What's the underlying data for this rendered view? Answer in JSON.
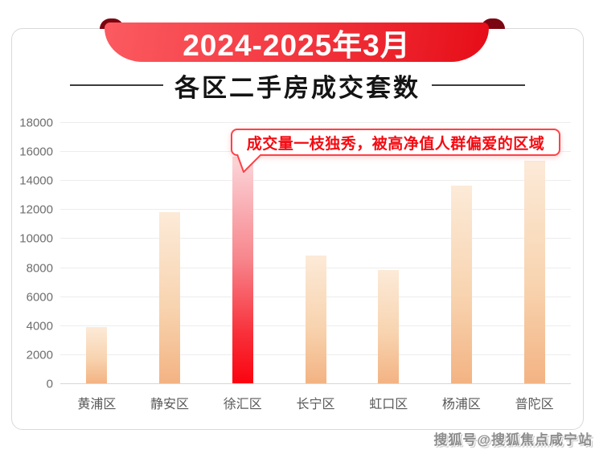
{
  "banner": {
    "period": "2024-2025年3月"
  },
  "section_title": {
    "text": "各区二手房成交套数"
  },
  "callout": {
    "text": "成交量一枝独秀，被高净值人群偏爱的区域"
  },
  "watermark": {
    "text": "搜狐号@搜狐焦点咸宁站"
  },
  "colors": {
    "ribbon_red_light": "#fb5b61",
    "ribbon_red_dark": "#e60d17",
    "ribbon_fold": "#7b0511",
    "bar_orange_top": "#fcead8",
    "bar_orange_bottom": "#f3b383",
    "bar_red_top": "#fbd7da",
    "bar_red_bottom": "#fa040f",
    "callout_border": "#fc4348",
    "callout_text": "#f40b12",
    "axis_label": "#6e6e6e"
  },
  "chart_data": {
    "type": "bar",
    "title": "各区二手房成交套数",
    "categories": [
      "黄浦区",
      "静安区",
      "徐汇区",
      "长宁区",
      "虹口区",
      "杨浦区",
      "普陀区"
    ],
    "values": [
      3900,
      11800,
      15600,
      8800,
      7800,
      13650,
      15350
    ],
    "highlight_index": 2,
    "highlight_label": "徐汇区",
    "xlabel": "",
    "ylabel": "",
    "ylim": [
      0,
      18000
    ],
    "ytick_step": 2000,
    "grid": true,
    "legend": "none"
  }
}
